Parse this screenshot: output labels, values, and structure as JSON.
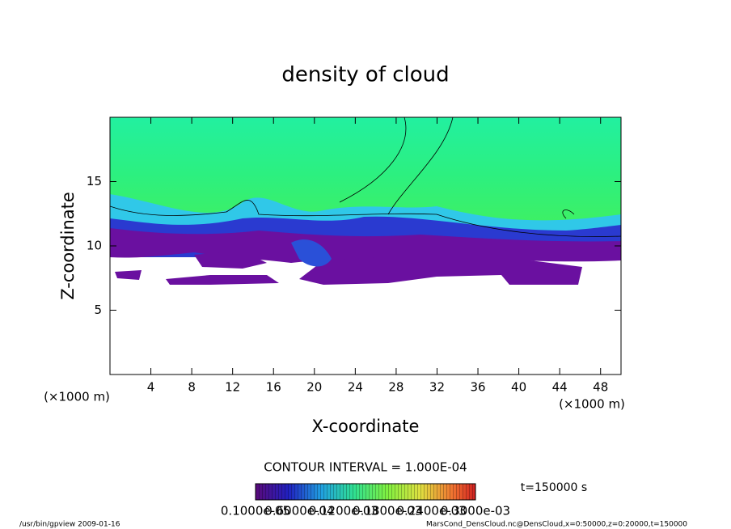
{
  "chart_data": {
    "type": "contour",
    "title": "density of cloud",
    "xlabel": "X-coordinate",
    "ylabel": "Z-coordinate",
    "x_unit_left": "(×1000 m)",
    "x_unit_right": "(×1000 m)",
    "xlim": [
      0,
      50
    ],
    "ylim": [
      0,
      20
    ],
    "xticks": [
      4,
      8,
      12,
      16,
      20,
      24,
      28,
      32,
      36,
      40,
      44,
      48
    ],
    "yticks": [
      5,
      10,
      15
    ],
    "contour_interval": "CONTOUR INTERVAL = 1.000E-04",
    "time": "t=150000 s",
    "colorbar_labels": [
      "0.1000e-05",
      "0.6000e-04",
      "0.1200e-03",
      "0.1800e-03",
      "0.2400e-03",
      "0.3000e-03"
    ],
    "footer_left": "/usr/bin/gpview  2009-01-16",
    "footer_right": "MarsCond_DensCloud.nc@DensCloud,x=0:50000,z=0:20000,t=150000"
  }
}
